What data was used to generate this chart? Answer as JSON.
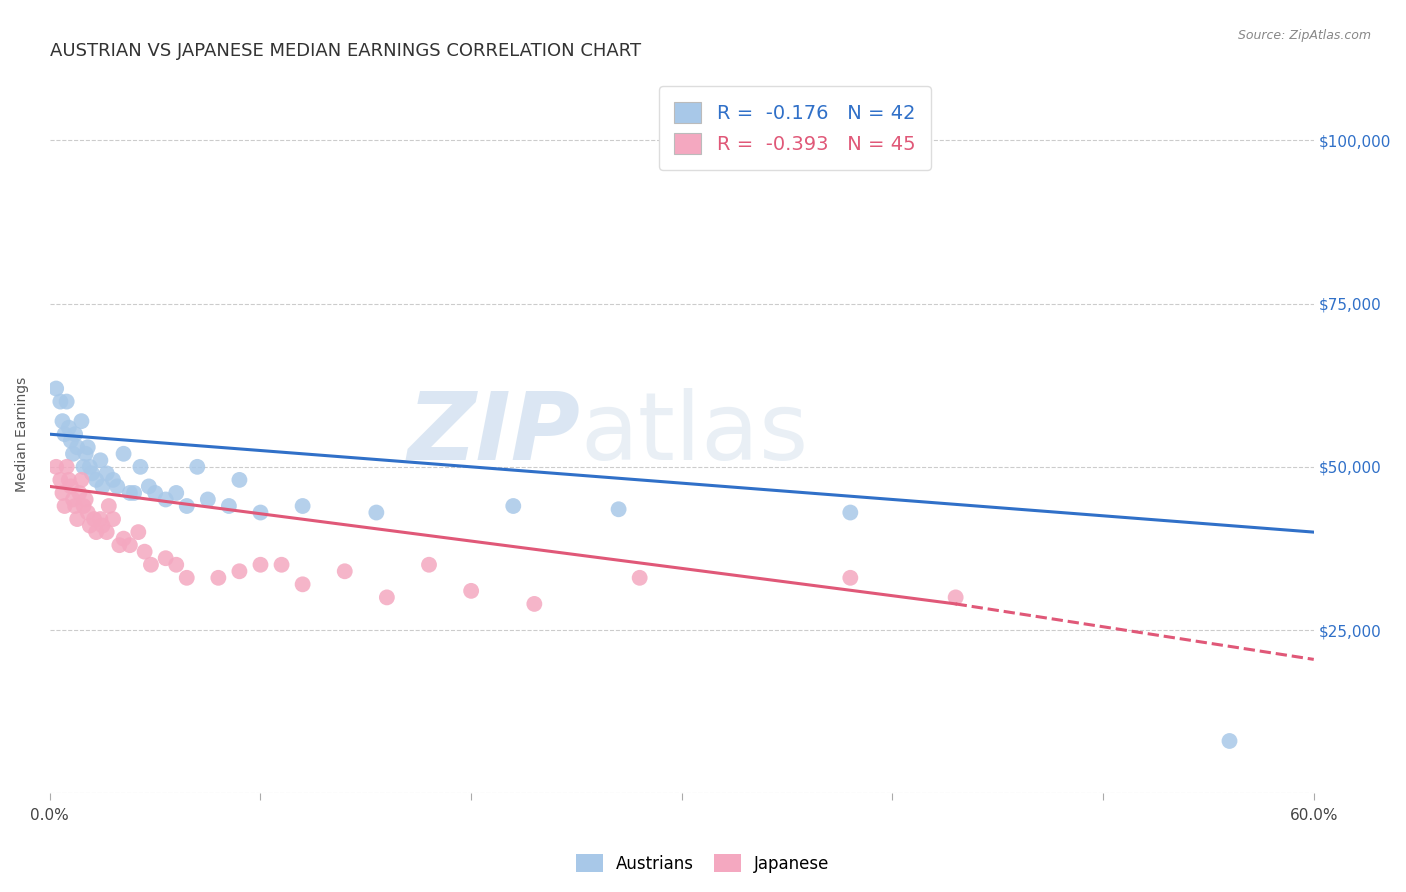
{
  "title": "AUSTRIAN VS JAPANESE MEDIAN EARNINGS CORRELATION CHART",
  "source": "Source: ZipAtlas.com",
  "ylabel": "Median Earnings",
  "xlim": [
    0.0,
    0.6
  ],
  "ylim": [
    0,
    110000
  ],
  "yticks": [
    0,
    25000,
    50000,
    75000,
    100000
  ],
  "xticks": [
    0.0,
    0.1,
    0.2,
    0.3,
    0.4,
    0.5,
    0.6
  ],
  "xtick_labels": [
    "0.0%",
    "",
    "",
    "",
    "",
    "",
    "60.0%"
  ],
  "ytick_labels": [
    "",
    "$25,000",
    "$50,000",
    "$75,000",
    "$100,000"
  ],
  "legend_austrians": "Austrians",
  "legend_japanese": "Japanese",
  "R_austrians": -0.176,
  "N_austrians": 42,
  "R_japanese": -0.393,
  "N_japanese": 45,
  "color_austrians": "#a8c8e8",
  "color_japanese": "#f4a8c0",
  "color_trend_austrians": "#3070c8",
  "color_trend_japanese": "#e05878",
  "watermark_zip": "ZIP",
  "watermark_atlas": "atlas",
  "title_fontsize": 13,
  "axis_label_fontsize": 10,
  "tick_fontsize": 11,
  "legend_fontsize": 14,
  "trend_line_austrians_x0": 0.0,
  "trend_line_austrians_y0": 55000,
  "trend_line_austrians_x1": 0.6,
  "trend_line_austrians_y1": 40000,
  "trend_line_japanese_x0": 0.0,
  "trend_line_japanese_y0": 47000,
  "trend_line_japanese_x1": 0.43,
  "trend_line_japanese_y1": 29000,
  "trend_line_japanese_dash_x0": 0.43,
  "trend_line_japanese_dash_y0": 29000,
  "trend_line_japanese_dash_x1": 0.6,
  "trend_line_japanese_dash_y1": 20500,
  "austrians_x": [
    0.003,
    0.005,
    0.006,
    0.007,
    0.008,
    0.009,
    0.01,
    0.011,
    0.012,
    0.013,
    0.015,
    0.016,
    0.017,
    0.018,
    0.019,
    0.02,
    0.022,
    0.024,
    0.025,
    0.027,
    0.03,
    0.032,
    0.035,
    0.038,
    0.04,
    0.043,
    0.047,
    0.05,
    0.055,
    0.06,
    0.065,
    0.07,
    0.075,
    0.085,
    0.09,
    0.1,
    0.12,
    0.155,
    0.22,
    0.27,
    0.38,
    0.56
  ],
  "austrians_y": [
    62000,
    60000,
    57000,
    55000,
    60000,
    56000,
    54000,
    52000,
    55000,
    53000,
    57000,
    50000,
    52000,
    53000,
    50000,
    49000,
    48000,
    51000,
    47000,
    49000,
    48000,
    47000,
    52000,
    46000,
    46000,
    50000,
    47000,
    46000,
    45000,
    46000,
    44000,
    50000,
    45000,
    44000,
    48000,
    43000,
    44000,
    43000,
    44000,
    43500,
    43000,
    8000
  ],
  "japanese_x": [
    0.003,
    0.005,
    0.006,
    0.007,
    0.008,
    0.009,
    0.01,
    0.011,
    0.012,
    0.013,
    0.014,
    0.015,
    0.016,
    0.017,
    0.018,
    0.019,
    0.021,
    0.022,
    0.024,
    0.025,
    0.027,
    0.028,
    0.03,
    0.033,
    0.035,
    0.038,
    0.042,
    0.045,
    0.048,
    0.055,
    0.06,
    0.065,
    0.08,
    0.09,
    0.1,
    0.11,
    0.12,
    0.14,
    0.16,
    0.18,
    0.2,
    0.23,
    0.28,
    0.38,
    0.43
  ],
  "japanese_y": [
    50000,
    48000,
    46000,
    44000,
    50000,
    48000,
    47000,
    45000,
    44000,
    42000,
    46000,
    48000,
    44000,
    45000,
    43000,
    41000,
    42000,
    40000,
    42000,
    41000,
    40000,
    44000,
    42000,
    38000,
    39000,
    38000,
    40000,
    37000,
    35000,
    36000,
    35000,
    33000,
    33000,
    34000,
    35000,
    35000,
    32000,
    34000,
    30000,
    35000,
    31000,
    29000,
    33000,
    33000,
    30000
  ]
}
